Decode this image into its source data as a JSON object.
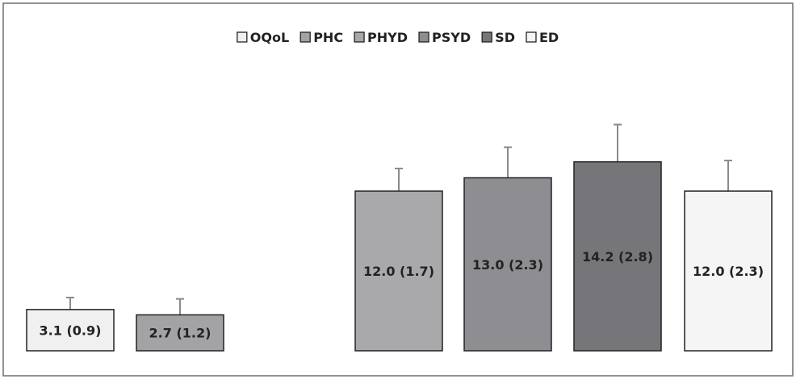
{
  "chart_data": {
    "type": "bar",
    "categories": [
      "OQoL",
      "PHC",
      "PHYD",
      "PSYD",
      "SD",
      "ED"
    ],
    "values": [
      3.1,
      2.7,
      12.0,
      13.0,
      14.2,
      12.0
    ],
    "errors": [
      0.9,
      1.2,
      1.7,
      2.3,
      2.8,
      2.3
    ],
    "labels": [
      "3.1 (0.9)",
      "2.7 (1.2)",
      "12.0 (1.7)",
      "13.0 (2.3)",
      "14.2 (2.8)",
      "12.0 (2.3)"
    ],
    "colors": [
      "#f0f0f0",
      "#a3a3a5",
      "#a9a9ab",
      "#8e8e92",
      "#76767a",
      "#f5f5f5"
    ],
    "legend": {
      "position": "top-center",
      "entries": [
        "OQoL",
        "PHC",
        "PHYD",
        "PSYD",
        "SD",
        "ED"
      ]
    },
    "ylim": [
      0,
      20
    ],
    "grid": false
  }
}
